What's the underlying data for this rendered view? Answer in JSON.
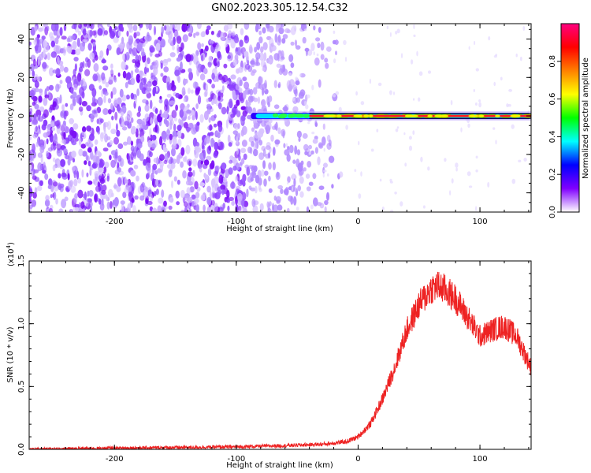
{
  "title": "GN02.2023.305.12.54.C32",
  "chart_data": [
    {
      "type": "heatmap",
      "xlabel": "Height of straight line (km)",
      "ylabel": "Frequency (Hz)",
      "xlim": [
        -270,
        142
      ],
      "ylim": [
        -50,
        48
      ],
      "x_ticks": [
        -200,
        -100,
        0,
        100
      ],
      "y_ticks": [
        -40,
        -20,
        0,
        20,
        40
      ],
      "noise_region_x": [
        -270,
        -55
      ],
      "signal_band": {
        "x_start": -88,
        "x_end": 142,
        "frequency": 0
      },
      "colorbar": {
        "label": "Normalized spectral amplitude",
        "range": [
          0,
          1
        ],
        "ticks": [
          "0.0",
          "0.2",
          "0.4",
          "0.6",
          "0.8"
        ],
        "colors": [
          "#ffffff",
          "#8000ff",
          "#0000ff",
          "#00ffff",
          "#00ff00",
          "#ffff00",
          "#ff8000",
          "#ff0000",
          "#ff0080"
        ]
      }
    },
    {
      "type": "line",
      "xlabel": "Height of straight line (km)",
      "ylabel": "SNR (10 * v/v)",
      "y_multiplier_label": "(x10",
      "y_multiplier_exp": "4",
      "xlim": [
        -270,
        142
      ],
      "ylim": [
        0,
        1.5
      ],
      "x_ticks": [
        -200,
        -100,
        0,
        100
      ],
      "y_ticks": [
        "0.0",
        "0.5",
        "1.0",
        "1.5"
      ],
      "color": "#ee2222",
      "series": [
        {
          "x": [
            -270,
            -200,
            -150,
            -100,
            -60,
            -30,
            -10,
            0,
            10,
            20,
            30,
            40,
            50,
            60,
            65,
            70,
            80,
            90,
            100,
            110,
            120,
            130,
            142
          ],
          "y": [
            0.0,
            0.01,
            0.015,
            0.02,
            0.03,
            0.04,
            0.06,
            0.1,
            0.2,
            0.4,
            0.65,
            0.95,
            1.15,
            1.28,
            1.3,
            1.28,
            1.2,
            1.05,
            0.9,
            0.95,
            0.98,
            0.9,
            0.65
          ]
        }
      ]
    }
  ]
}
